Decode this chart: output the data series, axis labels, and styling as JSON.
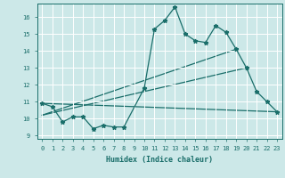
{
  "xlabel": "Humidex (Indice chaleur)",
  "ylabel": "",
  "bg_color": "#cce8e8",
  "grid_color": "#b8d8d8",
  "line_color": "#1a6e6a",
  "xlim": [
    -0.5,
    23.5
  ],
  "ylim": [
    8.8,
    16.8
  ],
  "xticks": [
    0,
    1,
    2,
    3,
    4,
    5,
    6,
    7,
    8,
    9,
    10,
    11,
    12,
    13,
    14,
    15,
    16,
    17,
    18,
    19,
    20,
    21,
    22,
    23
  ],
  "yticks": [
    9,
    10,
    11,
    12,
    13,
    14,
    15,
    16
  ],
  "series1_x": [
    0,
    1,
    2,
    3,
    4,
    5,
    6,
    7,
    8,
    10,
    11,
    12,
    13,
    14,
    15,
    16,
    17,
    18,
    19,
    20,
    21,
    22,
    23
  ],
  "series1_y": [
    10.9,
    10.7,
    9.8,
    10.1,
    10.1,
    9.4,
    9.6,
    9.5,
    9.5,
    11.8,
    15.3,
    15.8,
    16.6,
    15.0,
    14.6,
    14.5,
    15.5,
    15.1,
    14.1,
    13.0,
    11.6,
    11.0,
    10.4
  ],
  "line1_x": [
    0,
    23
  ],
  "line1_y": [
    10.9,
    10.4
  ],
  "line2_x": [
    0,
    20
  ],
  "line2_y": [
    10.2,
    13.0
  ],
  "line3_x": [
    0,
    19
  ],
  "line3_y": [
    10.2,
    14.1
  ]
}
